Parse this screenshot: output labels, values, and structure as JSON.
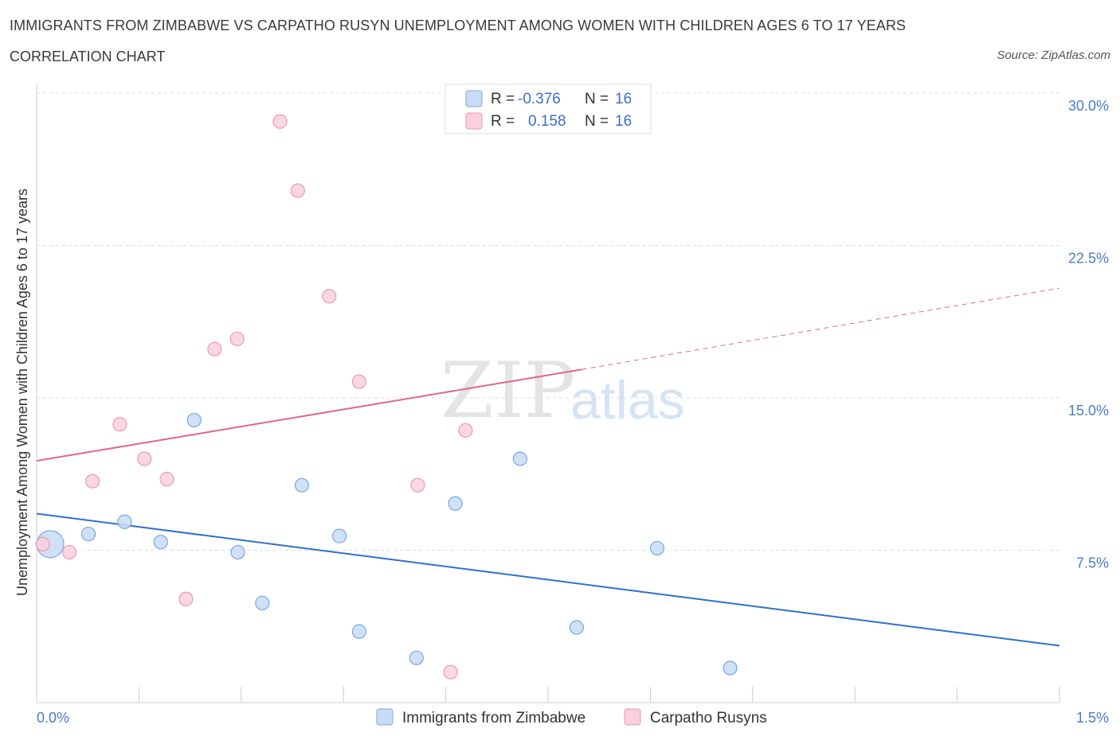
{
  "header": {
    "title": "IMMIGRANTS FROM ZIMBABWE VS CARPATHO RUSYN UNEMPLOYMENT AMONG WOMEN WITH CHILDREN AGES 6 TO 17 YEARS",
    "subtitle": "CORRELATION CHART",
    "source": "Source: ZipAtlas.com"
  },
  "watermark": {
    "zip": "ZIP",
    "atlas": "atlas"
  },
  "legend": {
    "r_label": "R =",
    "n_label": "N =",
    "rows": [
      {
        "r": "-0.376",
        "n": "16",
        "color": "#a9c8f0"
      },
      {
        "r": "0.158",
        "n": "16",
        "color": "#f5b8cb"
      }
    ]
  },
  "colors": {
    "blue_fill": "#c8dcf6",
    "blue_stroke": "#7aa7e0",
    "blue_line": "#2f6fce",
    "pink_fill": "#f9d0dc",
    "pink_stroke": "#ea9ab3",
    "pink_line": "#e0668f"
  },
  "chart_data": {
    "type": "scatter",
    "title": "IMMIGRANTS FROM ZIMBABWE VS CARPATHO RUSYN UNEMPLOYMENT AMONG WOMEN WITH CHILDREN AGES 6 TO 17 YEARS",
    "xlabel": "",
    "ylabel": "Unemployment Among Women with Children Ages 6 to 17 years",
    "xlim": [
      0,
      1.5
    ],
    "ylim": [
      0,
      30
    ],
    "x_tick_labels": [
      "0.0%",
      "1.5%"
    ],
    "y_ticks": [
      7.5,
      15.0,
      22.5,
      30.0
    ],
    "y_tick_labels": [
      "7.5%",
      "15.0%",
      "22.5%",
      "30.0%"
    ],
    "grid": true,
    "legend_position": "top-center",
    "series": [
      {
        "name": "Immigrants from Zimbabwe",
        "color": "#a9c8f0",
        "points": [
          {
            "x": 0.02,
            "y": 7.8,
            "big": true
          },
          {
            "x": 0.076,
            "y": 8.3
          },
          {
            "x": 0.129,
            "y": 8.9
          },
          {
            "x": 0.182,
            "y": 7.9
          },
          {
            "x": 0.231,
            "y": 13.9
          },
          {
            "x": 0.295,
            "y": 7.4
          },
          {
            "x": 0.331,
            "y": 4.9
          },
          {
            "x": 0.389,
            "y": 10.7
          },
          {
            "x": 0.444,
            "y": 8.2
          },
          {
            "x": 0.473,
            "y": 3.5
          },
          {
            "x": 0.557,
            "y": 2.2
          },
          {
            "x": 0.614,
            "y": 9.8
          },
          {
            "x": 0.709,
            "y": 12.0
          },
          {
            "x": 0.792,
            "y": 3.7
          },
          {
            "x": 0.91,
            "y": 7.6
          },
          {
            "x": 1.017,
            "y": 1.7
          }
        ],
        "trend": {
          "x": [
            0.0,
            1.5
          ],
          "y": [
            9.3,
            2.8
          ]
        }
      },
      {
        "name": "Carpatho Rusyns",
        "color": "#f5b8cb",
        "points": [
          {
            "x": 0.009,
            "y": 7.8
          },
          {
            "x": 0.048,
            "y": 7.4
          },
          {
            "x": 0.082,
            "y": 10.9
          },
          {
            "x": 0.122,
            "y": 13.7
          },
          {
            "x": 0.158,
            "y": 12.0
          },
          {
            "x": 0.191,
            "y": 11.0
          },
          {
            "x": 0.219,
            "y": 5.1
          },
          {
            "x": 0.261,
            "y": 17.4
          },
          {
            "x": 0.294,
            "y": 17.9
          },
          {
            "x": 0.357,
            "y": 28.6
          },
          {
            "x": 0.383,
            "y": 25.2
          },
          {
            "x": 0.429,
            "y": 20.0
          },
          {
            "x": 0.473,
            "y": 15.8
          },
          {
            "x": 0.559,
            "y": 10.7
          },
          {
            "x": 0.629,
            "y": 13.4
          },
          {
            "x": 0.607,
            "y": 1.5
          }
        ],
        "trend": {
          "x": [
            0.0,
            0.8
          ],
          "y": [
            11.9,
            16.4
          ]
        },
        "trend_dashed": {
          "x": [
            0.8,
            1.5
          ],
          "y": [
            16.4,
            20.4
          ]
        }
      }
    ]
  }
}
